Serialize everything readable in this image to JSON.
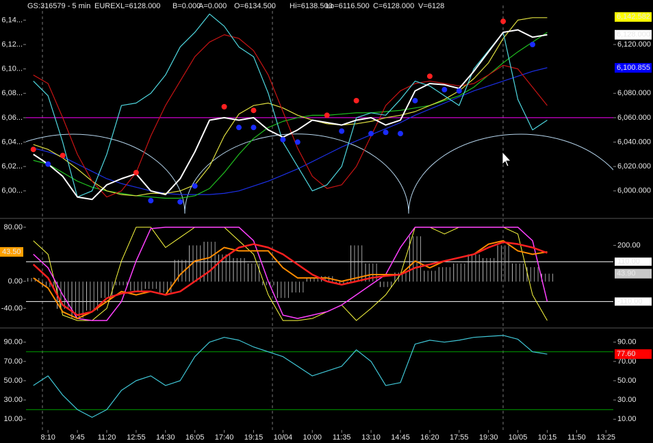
{
  "header": [
    {
      "text": "GS:316579 - 5 min",
      "color": "#ffffff"
    },
    {
      "text": "EUREX",
      "color": "#ffffff"
    },
    {
      "text": "L=6128.000",
      "color": "#40ff40"
    },
    {
      "text": "B=0.000",
      "color": "#ffffff"
    },
    {
      "text": "A=0.000",
      "color": "#ffffff"
    },
    {
      "text": "O=6134.500",
      "color": "#40ff40"
    },
    {
      "text": "Hi=6138.500",
      "color": "#ffffff"
    },
    {
      "text": "Lo=6116.500",
      "color": "#ffffff"
    },
    {
      "text": "C=6128.000",
      "color": "#40ff40"
    },
    {
      "text": "V=6128",
      "color": "#ffffff"
    }
  ],
  "chart_data": [
    {
      "type": "line",
      "ylim": [
        5978,
        6152
      ],
      "ytick_sides": [
        "right"
      ],
      "yticks": [
        {
          "value": 6120,
          "label": "6,120.000"
        },
        {
          "value": 6080,
          "label": "6,080.000"
        },
        {
          "value": 6060,
          "label": "6,060.000"
        },
        {
          "value": 6040,
          "label": "6,040.000"
        },
        {
          "value": 6020,
          "label": "6,020.000"
        },
        {
          "value": 6000,
          "label": "6,000.000"
        }
      ],
      "yticks_left": [
        {
          "value": 6140,
          "label": "6,14..."
        },
        {
          "value": 6120,
          "label": "6,12..."
        },
        {
          "value": 6100,
          "label": "6,10..."
        },
        {
          "value": 6080,
          "label": "6,08..."
        },
        {
          "value": 6060,
          "label": "6,06..."
        },
        {
          "value": 6040,
          "label": "6,04..."
        },
        {
          "value": 6020,
          "label": "6,02..."
        },
        {
          "value": 6000,
          "label": "6,00..."
        }
      ],
      "reference_lines": [
        {
          "value": 6060,
          "color": "#ff00ff"
        }
      ],
      "value_tags": [
        {
          "value": 6142.582,
          "label": "6,142.582",
          "color": "#ffff00",
          "text_color": "#000000",
          "side": "right"
        },
        {
          "value": 6128,
          "label": "6,128.000",
          "color": "#ffffff",
          "text_color": "#000000",
          "side": "right"
        },
        {
          "value": 6100.855,
          "label": "6,100.855",
          "color": "#0000ff",
          "text_color": "#4a64ff",
          "side": "right"
        }
      ],
      "series": [
        {
          "color": "#1c30e8",
          "line_width": 1.2,
          "values": [
            6035,
            6032,
            6028,
            6022,
            6016,
            6010,
            6006,
            6003,
            6000,
            5998,
            5997,
            5997,
            5997,
            5998,
            6000,
            6004,
            6008,
            6013,
            6018,
            6024,
            6030,
            6036,
            6041,
            6046,
            6051,
            6056,
            6062,
            6067,
            6072,
            6077,
            6082,
            6086,
            6090,
            6094,
            6098,
            6101,
            null,
            null,
            null,
            null
          ]
        },
        {
          "color": "#20c020",
          "line_width": 1.2,
          "values": [
            6025,
            6022,
            6015,
            6008,
            6003,
            6000,
            5998,
            5996,
            5995,
            5994,
            5994,
            5996,
            6002,
            6015,
            6030,
            6043,
            6052,
            6057,
            6060,
            6062,
            6062,
            6063,
            6064,
            6064,
            6065,
            6066,
            6068,
            6070,
            6074,
            6078,
            6085,
            6095,
            6105,
            6114,
            6122,
            6130,
            null,
            null,
            null,
            null
          ]
        },
        {
          "color": "#e0e040",
          "line_width": 1.2,
          "values": [
            6038,
            6034,
            6027,
            6018,
            6008,
            6000,
            5997,
            5996,
            5998,
            5998,
            6000,
            6005,
            6020,
            6045,
            6063,
            6070,
            6072,
            6068,
            6062,
            6058,
            6055,
            6054,
            6055,
            6057,
            6060,
            6062,
            6065,
            6070,
            6075,
            6082,
            6092,
            6105,
            6125,
            6140,
            6142,
            6142,
            null,
            null,
            null,
            null
          ]
        },
        {
          "color": "#c81414",
          "line_width": 1.2,
          "values": [
            6095,
            6088,
            6060,
            6030,
            6008,
            5995,
            6000,
            6015,
            6045,
            6070,
            6090,
            6110,
            6122,
            6128,
            6125,
            6115,
            6095,
            6065,
            6035,
            6012,
            6002,
            6005,
            6020,
            6045,
            6070,
            6082,
            6088,
            6090,
            6088,
            6086,
            6088,
            6095,
            6103,
            6100,
            6085,
            6070,
            null,
            null,
            null,
            null
          ]
        },
        {
          "color": "#4fd8e0",
          "line_width": 1.2,
          "values": [
            6090,
            6078,
            6040,
            5995,
            6000,
            6030,
            6070,
            6072,
            6080,
            6095,
            6118,
            6130,
            6145,
            6135,
            6118,
            6110,
            6080,
            6040,
            6020,
            6000,
            6005,
            6020,
            6060,
            6064,
            6062,
            6075,
            6090,
            6086,
            6078,
            6070,
            6100,
            6115,
            6130,
            6075,
            6050,
            6058,
            null,
            null,
            null,
            null
          ]
        },
        {
          "color": "#ffffff",
          "line_width": 2,
          "values": [
            6030,
            6022,
            6012,
            5995,
            5993,
            6005,
            6010,
            6014,
            6000,
            5997,
            6010,
            6032,
            6058,
            6060,
            6058,
            6060,
            6050,
            6044,
            6050,
            6058,
            6056,
            6054,
            6058,
            6060,
            6054,
            6058,
            6082,
            6088,
            6087,
            6084,
            6098,
            6114,
            6130,
            6132,
            6126,
            6128,
            null,
            null,
            null,
            null
          ]
        },
        {
          "color": "#ff2020",
          "marker": "dot",
          "values": [
            6034,
            null,
            6029,
            null,
            null,
            null,
            null,
            6015,
            null,
            null,
            null,
            null,
            null,
            6069,
            null,
            6066,
            null,
            null,
            null,
            null,
            6062,
            null,
            6074,
            null,
            null,
            null,
            null,
            6094,
            null,
            null,
            null,
            null,
            6139,
            null,
            null,
            null,
            null,
            null,
            null,
            null
          ]
        },
        {
          "color": "#1a2cff",
          "marker": "dot",
          "values": [
            null,
            6022,
            null,
            null,
            null,
            null,
            null,
            null,
            5992,
            null,
            5991,
            6004,
            null,
            null,
            6052,
            6052,
            null,
            6042,
            6040,
            null,
            null,
            6049,
            null,
            6047,
            6048,
            6047,
            6074,
            null,
            6083,
            6082,
            null,
            null,
            null,
            null,
            6120,
            null,
            null,
            null,
            null,
            null
          ]
        }
      ]
    },
    {
      "type": "line",
      "ylim": [
        -68,
        92
      ],
      "ytick_sides": [
        "left"
      ],
      "yticks": [
        {
          "value": 80,
          "label": "80.00"
        },
        {
          "value": 0,
          "label": "0.00"
        },
        {
          "value": -40,
          "label": "-40.00"
        }
      ],
      "y2lim": [
        -252,
        345
      ],
      "y2ticks": [
        {
          "value": 200,
          "label": "200.00"
        }
      ],
      "reference_lines": [
        {
          "value": 110,
          "label": "110.00",
          "axis": "y2",
          "color": "#ffffff"
        },
        {
          "value": -110,
          "label": "-110.00",
          "axis": "y2",
          "color": "#ffffff"
        }
      ],
      "value_tags": [
        {
          "value": 43.5,
          "label": "43.50",
          "color": "#ffa000",
          "text_color": "#000000",
          "side": "left"
        },
        {
          "value": 43.9,
          "label": "43.90",
          "color": "#c8c8c8",
          "text_color": "#000000",
          "side": "right",
          "axis": "y2"
        }
      ],
      "series": [
        {
          "type": "bar",
          "axis": "y2",
          "color": "#bdbdbd",
          "values": [
            20,
            -30,
            -150,
            -200,
            -160,
            -90,
            -20,
            -50,
            -40,
            -60,
            120,
            200,
            220,
            150,
            130,
            100,
            -20,
            -90,
            -60,
            20,
            30,
            -10,
            200,
            100,
            -30,
            50,
            250,
            60,
            80,
            100,
            150,
            130,
            200,
            100,
            80,
            43.9,
            null,
            null,
            null,
            null
          ]
        },
        {
          "color": "#ffff40",
          "line_width": 1,
          "values": [
            60,
            40,
            -50,
            -58,
            -58,
            -40,
            30,
            80,
            80,
            50,
            65,
            80,
            80,
            80,
            60,
            40,
            -20,
            -58,
            -58,
            -55,
            -45,
            -35,
            -58,
            -40,
            -20,
            10,
            80,
            80,
            70,
            80,
            80,
            80,
            80,
            70,
            -20,
            -58,
            null,
            null,
            null,
            null
          ]
        },
        {
          "color": "#ff40ff",
          "line_width": 1.5,
          "values": [
            40,
            20,
            -20,
            -55,
            -58,
            -58,
            -30,
            30,
            78,
            80,
            80,
            80,
            80,
            80,
            80,
            60,
            0,
            -50,
            -55,
            -50,
            -45,
            -35,
            -20,
            -5,
            10,
            50,
            80,
            80,
            80,
            80,
            80,
            80,
            80,
            80,
            60,
            -30,
            null,
            null,
            null,
            null
          ]
        },
        {
          "color": "#ff8c00",
          "line_width": 2,
          "values": [
            5,
            -10,
            -45,
            -55,
            -45,
            -30,
            -15,
            -20,
            -15,
            -20,
            10,
            30,
            35,
            50,
            45,
            45,
            45,
            20,
            5,
            5,
            5,
            0,
            5,
            10,
            10,
            10,
            30,
            20,
            30,
            35,
            40,
            55,
            60,
            45,
            40,
            43.5,
            null,
            null,
            null,
            null
          ]
        },
        {
          "color": "#ff2020",
          "line_width": 2.5,
          "values": [
            25,
            5,
            -35,
            -50,
            -45,
            -25,
            -18,
            -15,
            -15,
            -20,
            -15,
            0,
            15,
            35,
            50,
            55,
            50,
            40,
            25,
            10,
            0,
            -5,
            0,
            5,
            8,
            10,
            20,
            25,
            30,
            35,
            40,
            50,
            58,
            55,
            50,
            42,
            null,
            null,
            null,
            null
          ]
        }
      ]
    },
    {
      "type": "line",
      "ylim": [
        -4,
        104
      ],
      "ytick_sides": [
        "left",
        "right"
      ],
      "yticks": [
        {
          "value": 90,
          "label": "90.00"
        },
        {
          "value": 70,
          "label": "70.00"
        },
        {
          "value": 50,
          "label": "50.00"
        },
        {
          "value": 30,
          "label": "30.00"
        },
        {
          "value": 10,
          "label": "10.00"
        }
      ],
      "reference_lines": [
        {
          "value": 80,
          "color": "#00a000"
        },
        {
          "value": 20,
          "color": "#00a000"
        }
      ],
      "value_tags": [
        {
          "value": 77.6,
          "label": "77.60",
          "color": "#ff0000",
          "text_color": "#600000",
          "side": "right"
        }
      ],
      "categories": [
        null,
        "8:10",
        null,
        "9:45",
        null,
        "11:20",
        null,
        "12:55",
        null,
        "14:30",
        null,
        "16:05",
        null,
        "17:40",
        null,
        "19:15",
        null,
        "10/04",
        null,
        "10:00",
        null,
        "11:35",
        null,
        "13:10",
        null,
        "14:45",
        null,
        "16:20",
        null,
        "17:55",
        null,
        "19:30",
        null,
        "10/05",
        null,
        "10:15",
        null,
        "11:50",
        null,
        "13:25"
      ],
      "series": [
        {
          "color": "#40c8d8",
          "line_width": 1.2,
          "values": [
            45,
            55,
            35,
            20,
            12,
            20,
            40,
            50,
            55,
            45,
            50,
            75,
            90,
            95,
            92,
            85,
            80,
            75,
            65,
            55,
            60,
            65,
            82,
            70,
            45,
            48,
            88,
            92,
            90,
            92,
            95,
            96,
            97,
            93,
            80,
            77.6,
            null,
            null,
            null,
            null
          ]
        }
      ]
    }
  ]
}
